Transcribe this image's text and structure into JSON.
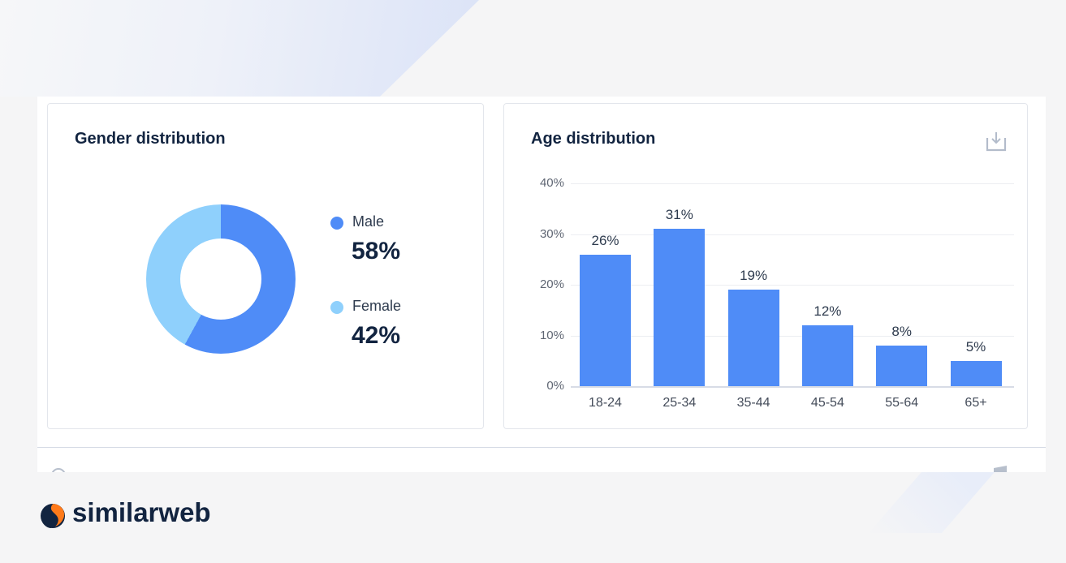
{
  "gender_panel": {
    "title": "Gender distribution",
    "items": [
      {
        "label": "Male",
        "value": "58%",
        "color": "#4f8cf7"
      },
      {
        "label": "Female",
        "value": "42%",
        "color": "#8fd0fc"
      }
    ]
  },
  "age_panel": {
    "title": "Age distribution",
    "download_icon": "download-icon",
    "y_ticks": [
      "40%",
      "30%",
      "20%",
      "10%",
      "0%"
    ],
    "bars": [
      {
        "category": "18-24",
        "label": "26%"
      },
      {
        "category": "25-34",
        "label": "31%"
      },
      {
        "category": "35-44",
        "label": "19%"
      },
      {
        "category": "45-54",
        "label": "12%"
      },
      {
        "category": "55-64",
        "label": "8%"
      },
      {
        "category": "65+",
        "label": "5%"
      }
    ]
  },
  "brand": {
    "name": "similarweb",
    "colors": {
      "navy": "#122440",
      "orange": "#ff7a1a"
    }
  },
  "chart_data": [
    {
      "type": "pie",
      "title": "Gender distribution",
      "categories": [
        "Male",
        "Female"
      ],
      "values": [
        58,
        42
      ],
      "colors": [
        "#4f8cf7",
        "#8fd0fc"
      ],
      "donut": true,
      "legend_position": "right"
    },
    {
      "type": "bar",
      "title": "Age distribution",
      "categories": [
        "18-24",
        "25-34",
        "35-44",
        "45-54",
        "55-64",
        "65+"
      ],
      "values": [
        26,
        31,
        19,
        12,
        8,
        5
      ],
      "data_labels": [
        "26%",
        "31%",
        "19%",
        "12%",
        "8%",
        "5%"
      ],
      "xlabel": "",
      "ylabel": "",
      "ylim": [
        0,
        40
      ],
      "y_ticks": [
        0,
        10,
        20,
        30,
        40
      ],
      "y_tick_format": "percent",
      "grid": true,
      "color": "#4f8cf7"
    }
  ]
}
